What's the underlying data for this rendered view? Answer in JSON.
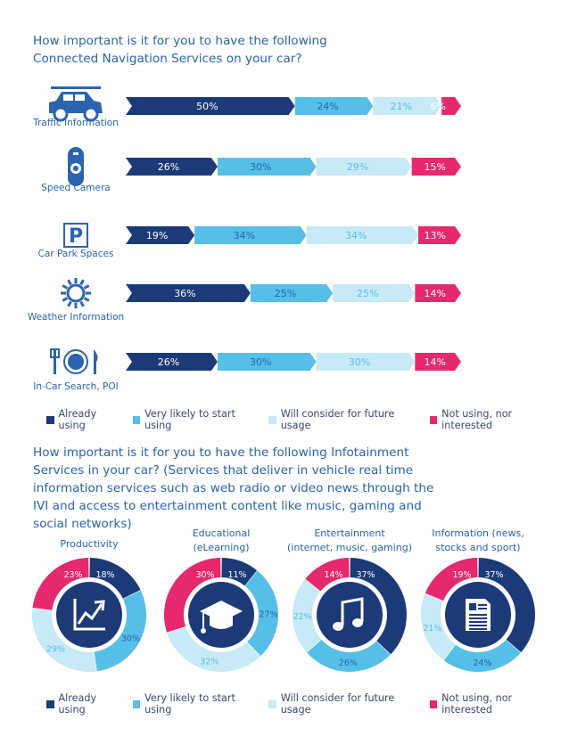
{
  "colors": {
    "already": "#1c3a78",
    "likely": "#56bfe8",
    "consider": "#c8e9f6",
    "not": "#e6286e",
    "title": "#2b63b0",
    "label": "#2b63b0"
  },
  "question1": "How important is it for you to have the following Connected Navigation Services on your car?",
  "question2": "How important is it for you to have the following Infotainment Services in your car? (Services that deliver in vehicle real time information services such as web radio or video news through the IVI and access to entertainment content like music, gaming and social networks)",
  "legend": [
    {
      "key": "already",
      "label": "Already using"
    },
    {
      "key": "likely",
      "label": "Very likely to start using"
    },
    {
      "key": "consider",
      "label": "Will consider for future usage"
    },
    {
      "key": "not",
      "label": "Not using, nor interested"
    }
  ],
  "chart_data": [
    {
      "type": "bar",
      "stacked": true,
      "orientation": "horizontal",
      "categories": [
        "Traffic Information",
        "Speed Camera",
        "Car Park Spaces",
        "Weather Information",
        "In-Car Search, POI"
      ],
      "icons": [
        "car-icon",
        "speed-camera-icon",
        "parking-icon",
        "sun-icon",
        "fork-plate-knife-icon"
      ],
      "series": [
        {
          "name": "Already using",
          "values": [
            50,
            26,
            19,
            36,
            26
          ]
        },
        {
          "name": "Very likely to start using",
          "values": [
            24,
            30,
            34,
            25,
            30
          ]
        },
        {
          "name": "Will consider for future usage",
          "values": [
            21,
            29,
            34,
            25,
            30
          ]
        },
        {
          "name": "Not using, nor interested",
          "values": [
            6,
            15,
            13,
            14,
            14
          ]
        }
      ],
      "value_labels": [
        [
          "50%",
          "24%",
          "21%",
          "6%"
        ],
        [
          "26%",
          "30%",
          "29%",
          "15%"
        ],
        [
          "19%",
          "34%",
          "34%",
          "13%"
        ],
        [
          "36%",
          "25%",
          "25%",
          "14%"
        ],
        [
          "26%",
          "30%",
          "30%",
          "14%"
        ]
      ],
      "legend_position": "bottom"
    },
    {
      "type": "pie",
      "donut": true,
      "charts": [
        {
          "title": "Productivity",
          "icon": "trend-chart-icon",
          "values": [
            18,
            30,
            29,
            23
          ],
          "labels": [
            "18%",
            "30%",
            "29%",
            "23%"
          ]
        },
        {
          "title": "Educational (eLearning)",
          "icon": "graduation-cap-icon",
          "values": [
            11,
            27,
            32,
            30
          ],
          "labels": [
            "11%",
            "27%",
            "32%",
            "30%"
          ]
        },
        {
          "title": "Entertainment (internet, music, gaming)",
          "icon": "music-note-icon",
          "values": [
            37,
            26,
            22,
            14
          ],
          "labels": [
            "37%",
            "26%",
            "22%",
            "14%"
          ]
        },
        {
          "title": "Information (news, stocks and sport)",
          "icon": "document-icon",
          "values": [
            37,
            24,
            21,
            19
          ],
          "labels": [
            "37%",
            "24%",
            "21%",
            "19%"
          ]
        }
      ],
      "series_names": [
        "Already using",
        "Very likely to start using",
        "Will consider for future usage",
        "Not using, nor interested"
      ],
      "legend_position": "bottom"
    }
  ]
}
